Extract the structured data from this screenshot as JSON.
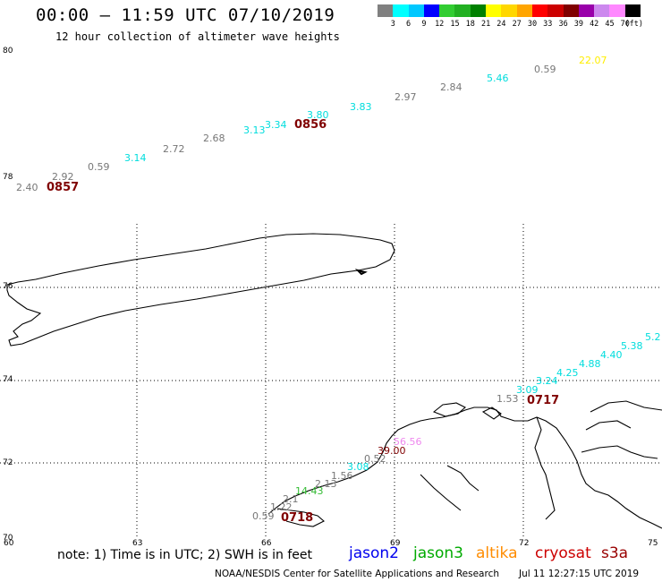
{
  "title": "00:00 – 11:59 UTC 07/10/2019",
  "subtitle": "12 hour collection of altimeter wave heights",
  "colorbar": {
    "colors": [
      "#808080",
      "#00ffff",
      "#00c8ff",
      "#0000ff",
      "#32cd32",
      "#22b022",
      "#008000",
      "#ffff00",
      "#ffd700",
      "#ffa500",
      "#ff0000",
      "#cc0000",
      "#800000",
      "#9900aa",
      "#cc88ee",
      "#ff88ff",
      "#000000"
    ],
    "ticks": [
      "3",
      "6",
      "9",
      "12",
      "15",
      "18",
      "21",
      "24",
      "27",
      "30",
      "33",
      "36",
      "39",
      "42",
      "45",
      "70",
      "(ft)"
    ]
  },
  "axes": {
    "lon_ticks": [
      "60",
      "63",
      "66",
      "69",
      "72",
      "75"
    ],
    "lat_ticks": [
      "80",
      "78",
      "76",
      "74",
      "72",
      "70"
    ]
  },
  "track_north": {
    "time_labels": [
      "0857",
      "0856"
    ],
    "values": [
      "2.40",
      "2.92",
      "0.59",
      "3.14",
      "2.72",
      "2.68",
      "3.13",
      "3.34",
      "3.80",
      "3.83",
      "2.97",
      "2.84",
      "5.46",
      "0.59",
      "22.07"
    ]
  },
  "track_south": {
    "time_labels": [
      "0718",
      "0717"
    ],
    "values": [
      "0.59",
      "1.22",
      "2.1",
      "14.43",
      "2.13",
      "1.56",
      "3.08",
      "0.52",
      "39.00",
      "56.56",
      "1.53",
      "3.09",
      "3.24",
      "4.25",
      "4.88",
      "4.40",
      "5.38",
      "5.2"
    ]
  },
  "note": "note:  1) Time is in UTC;  2) SWH is in feet",
  "legend": [
    {
      "name": "jason2",
      "color": "#0000ee"
    },
    {
      "name": "jason3",
      "color": "#00aa00"
    },
    {
      "name": "altika",
      "color": "#ff8c00"
    },
    {
      "name": "cryosat",
      "color": "#cc0000"
    },
    {
      "name": "s3a",
      "color": "#990000"
    }
  ],
  "credit": "NOAA/NESDIS Center for Satellite Applications and Research",
  "credit_time": "Jul 11 12:27:15 UTC 2019"
}
